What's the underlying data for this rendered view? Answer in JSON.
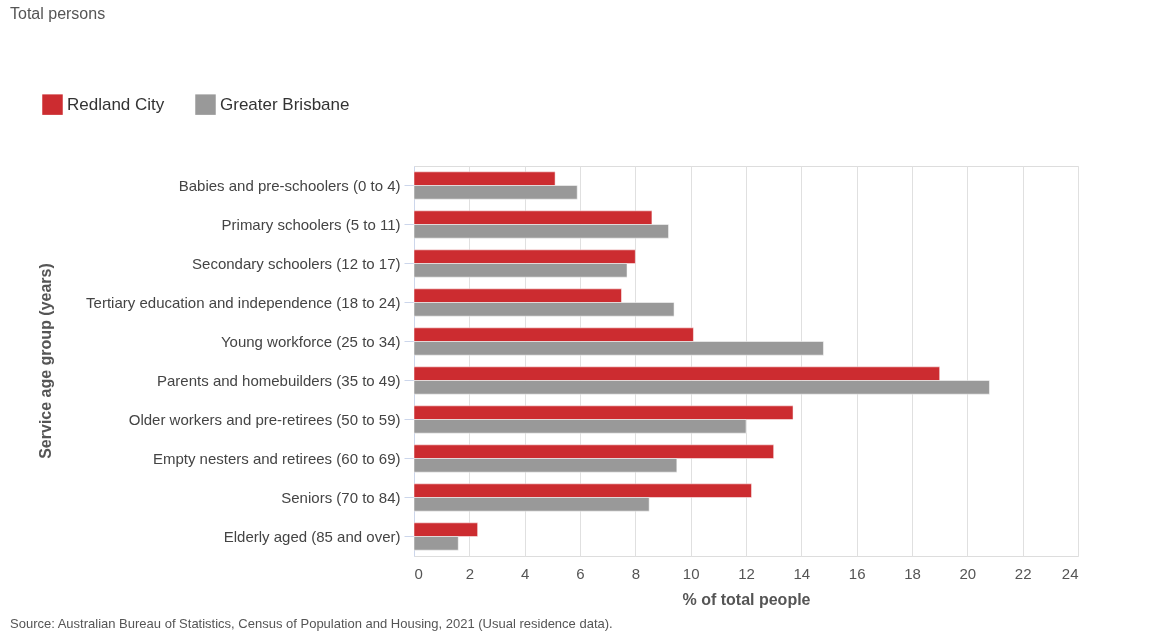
{
  "chart_data": {
    "type": "bar",
    "orientation": "horizontal",
    "title": "Total persons",
    "xlabel": "% of total people",
    "ylabel": "Service age group (years)",
    "categories": [
      "Babies and pre-schoolers (0 to 4)",
      "Primary schoolers (5 to 11)",
      "Secondary schoolers (12 to 17)",
      "Tertiary education and independence (18 to 24)",
      "Young workforce (25 to 34)",
      "Parents and homebuilders (35 to 49)",
      "Older workers and pre-retirees (50 to 59)",
      "Empty nesters and retirees (60 to 69)",
      "Seniors (70 to 84)",
      "Elderly aged (85 and over)"
    ],
    "series": [
      {
        "name": "Redland City",
        "color": "#cc2c30",
        "values": [
          5.1,
          8.6,
          8.0,
          7.5,
          10.1,
          19.0,
          13.7,
          13.0,
          12.2,
          2.3
        ]
      },
      {
        "name": "Greater Brisbane",
        "color": "#999999",
        "values": [
          5.9,
          9.2,
          7.7,
          9.4,
          14.8,
          20.8,
          12.0,
          9.5,
          8.5,
          1.6
        ]
      }
    ],
    "xlim": [
      0,
      24
    ],
    "xticks": [
      0,
      2,
      4,
      6,
      8,
      10,
      12,
      14,
      16,
      18,
      20,
      22,
      24
    ],
    "grid": "x",
    "legend": "top left",
    "annotations": [
      "Source: Australian Bureau of Statistics, Census of Population and Housing, 2021 (Usual residence data)."
    ]
  }
}
